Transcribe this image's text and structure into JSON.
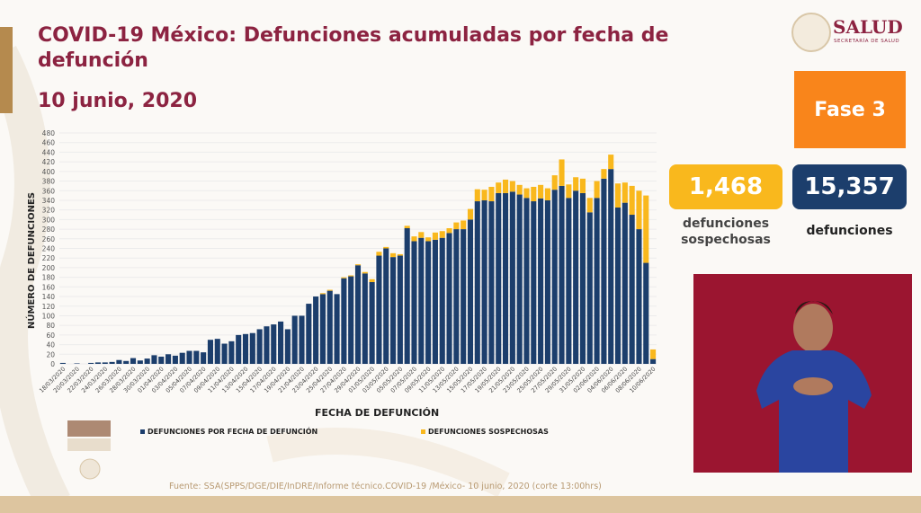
{
  "header": {
    "title": "COVID-19 México: Defunciones acumuladas por fecha de defunción",
    "date": "10 junio, 2020"
  },
  "logo": {
    "name": "SALUD",
    "subtitle": "SECRETARÍA DE SALUD"
  },
  "phase": {
    "label": "Fase 3",
    "color": "#f9851b"
  },
  "stats": {
    "suspect": {
      "value": "1,468",
      "label_line1": "defunciones",
      "label_line2": "sospechosas",
      "color": "#f9b81d"
    },
    "total": {
      "value": "15,357",
      "label": "defunciones",
      "color": "#1c3e6c"
    }
  },
  "source": "Fuente: SSA(SPPS/DGE/DIE/InDRE/Informe técnico.COVID-19 /México- 10 junio, 2020 (corte 13:00hrs)",
  "chart_data": {
    "type": "bar",
    "stacked": true,
    "title": "COVID-19 México: Defunciones acumuladas por fecha de defunción",
    "xlabel": "FECHA DE DEFUNCIÓN",
    "ylabel": "NÚMERO DE  DEFUNCIONES",
    "ylim": [
      0,
      480
    ],
    "ytick_step": 20,
    "yticks": [
      "0",
      "20",
      "40",
      "60",
      "80",
      "100",
      "120",
      "140",
      "160",
      "180",
      "200",
      "220",
      "240",
      "260",
      "280",
      "300",
      "320",
      "340",
      "360",
      "380",
      "400",
      "420",
      "440",
      "460",
      "480"
    ],
    "grid": true,
    "legend_position": "bottom",
    "xtick_labels": [
      "18/03/2020",
      "20/03/2020",
      "22/03/2020",
      "24/03/2020",
      "26/03/2020",
      "28/03/2020",
      "30/03/2020",
      "01/04/2020",
      "03/04/2020",
      "05/04/2020",
      "07/04/2020",
      "09/04/2020",
      "11/04/2020",
      "13/04/2020",
      "15/04/2020",
      "17/04/2020",
      "19/04/2020",
      "21/04/2020",
      "23/04/2020",
      "25/04/2020",
      "27/04/2020",
      "29/04/2020",
      "01/05/2020",
      "03/05/2020",
      "05/05/2020",
      "07/05/2020",
      "09/05/2020",
      "11/05/2020",
      "13/05/2020",
      "15/05/2020",
      "17/05/2020",
      "19/05/2020",
      "21/05/2020",
      "23/05/2020",
      "25/05/2020",
      "27/05/2020",
      "29/05/2020",
      "31/05/2020",
      "02/06/2020",
      "04/06/2020",
      "06/06/2020",
      "08/06/2020",
      "10/06/2020"
    ],
    "series": [
      {
        "name": "DEFUNCIONES POR FECHA DE DEFUNCIÓN",
        "color": "#1c3e6c",
        "values": [
          2,
          0,
          1,
          0,
          2,
          3,
          3,
          4,
          8,
          6,
          12,
          7,
          11,
          18,
          15,
          20,
          17,
          23,
          27,
          27,
          24,
          50,
          52,
          42,
          47,
          60,
          62,
          64,
          72,
          78,
          82,
          88,
          72,
          100,
          100,
          125,
          140,
          145,
          152,
          145,
          178,
          182,
          205,
          188,
          170,
          225,
          240,
          222,
          225,
          282,
          255,
          262,
          255,
          258,
          262,
          272,
          280,
          280,
          300,
          338,
          340,
          338,
          355,
          355,
          358,
          352,
          345,
          338,
          344,
          340,
          362,
          370,
          345,
          360,
          355,
          315,
          345,
          385,
          405,
          325,
          335,
          310,
          280,
          210,
          10
        ],
        "values_note": "last values in series continue below"
      },
      {
        "name": "DEFUNCIONES SOSPECHOSAS",
        "color": "#f9b81d",
        "values": [
          0,
          0,
          0,
          0,
          0,
          0,
          0,
          0,
          0,
          0,
          0,
          0,
          0,
          0,
          0,
          0,
          0,
          0,
          0,
          0,
          0,
          0,
          0,
          0,
          0,
          0,
          0,
          0,
          0,
          0,
          0,
          0,
          0,
          0,
          0,
          0,
          0,
          2,
          2,
          0,
          2,
          2,
          2,
          3,
          6,
          8,
          3,
          8,
          3,
          5,
          10,
          12,
          8,
          15,
          14,
          10,
          14,
          18,
          22,
          25,
          22,
          30,
          22,
          28,
          22,
          20,
          20,
          30,
          28,
          25,
          30,
          55,
          28,
          28,
          30,
          30,
          35,
          20,
          30,
          50,
          42,
          60,
          80,
          140,
          20
        ]
      }
    ]
  }
}
